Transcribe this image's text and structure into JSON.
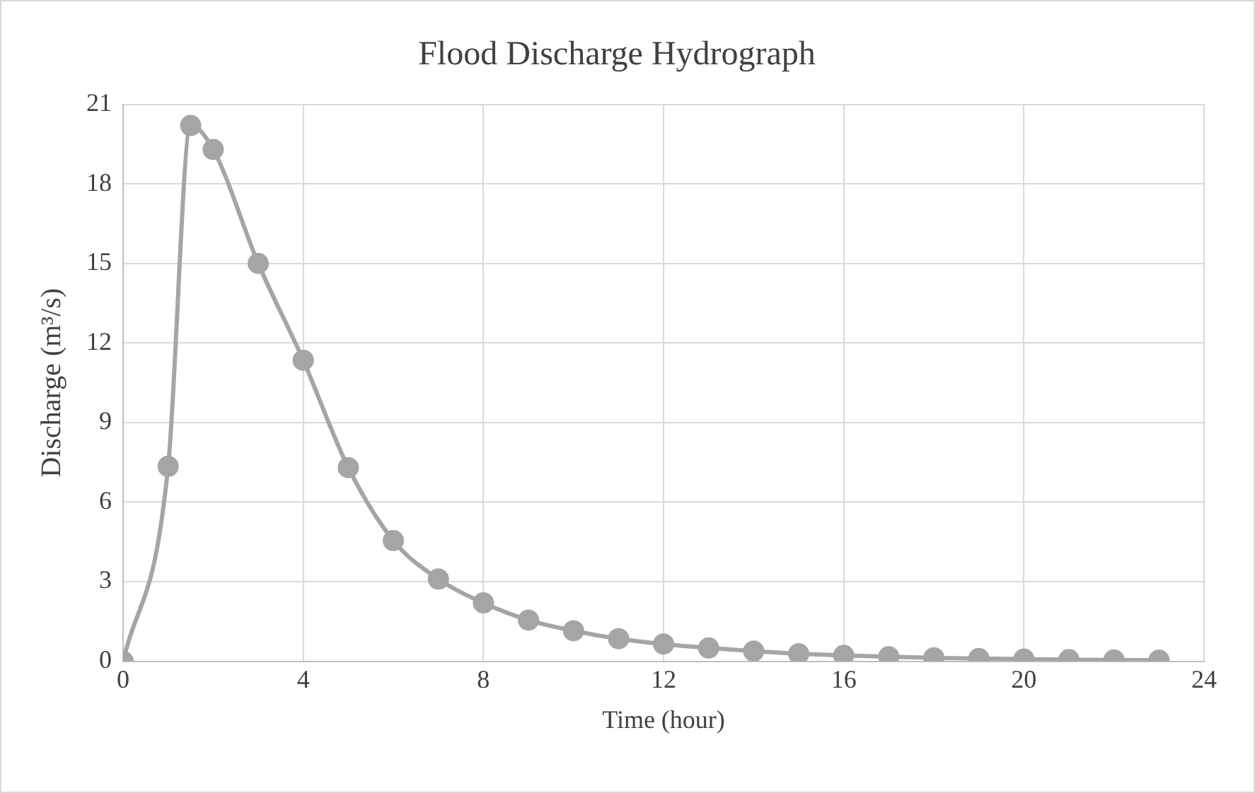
{
  "chart_data": {
    "type": "line",
    "title": "Flood Discharge Hydrograph",
    "xlabel": "Time (hour)",
    "ylabel": "Discharge (m³/s)",
    "x": [
      0,
      1,
      1.5,
      2,
      3,
      4,
      5,
      6,
      7,
      8,
      9,
      10,
      11,
      12,
      13,
      14,
      15,
      16,
      17,
      18,
      19,
      20,
      21,
      22,
      23
    ],
    "series": [
      {
        "color": "#a5a5a5",
        "values": [
          0,
          7.35,
          20.2,
          19.3,
          15.0,
          11.35,
          7.3,
          4.55,
          3.1,
          2.2,
          1.55,
          1.15,
          0.85,
          0.65,
          0.5,
          0.38,
          0.28,
          0.22,
          0.17,
          0.13,
          0.1,
          0.08,
          0.06,
          0.05,
          0.04
        ]
      }
    ],
    "xlim": [
      0,
      24
    ],
    "xticks": [
      0,
      4,
      8,
      12,
      16,
      20,
      24
    ],
    "ylim": [
      0,
      21
    ],
    "yticks": [
      0,
      3,
      6,
      9,
      12,
      15,
      18,
      21
    ],
    "grid": true,
    "legend": false,
    "marker": "circle",
    "line_style": "solid"
  }
}
